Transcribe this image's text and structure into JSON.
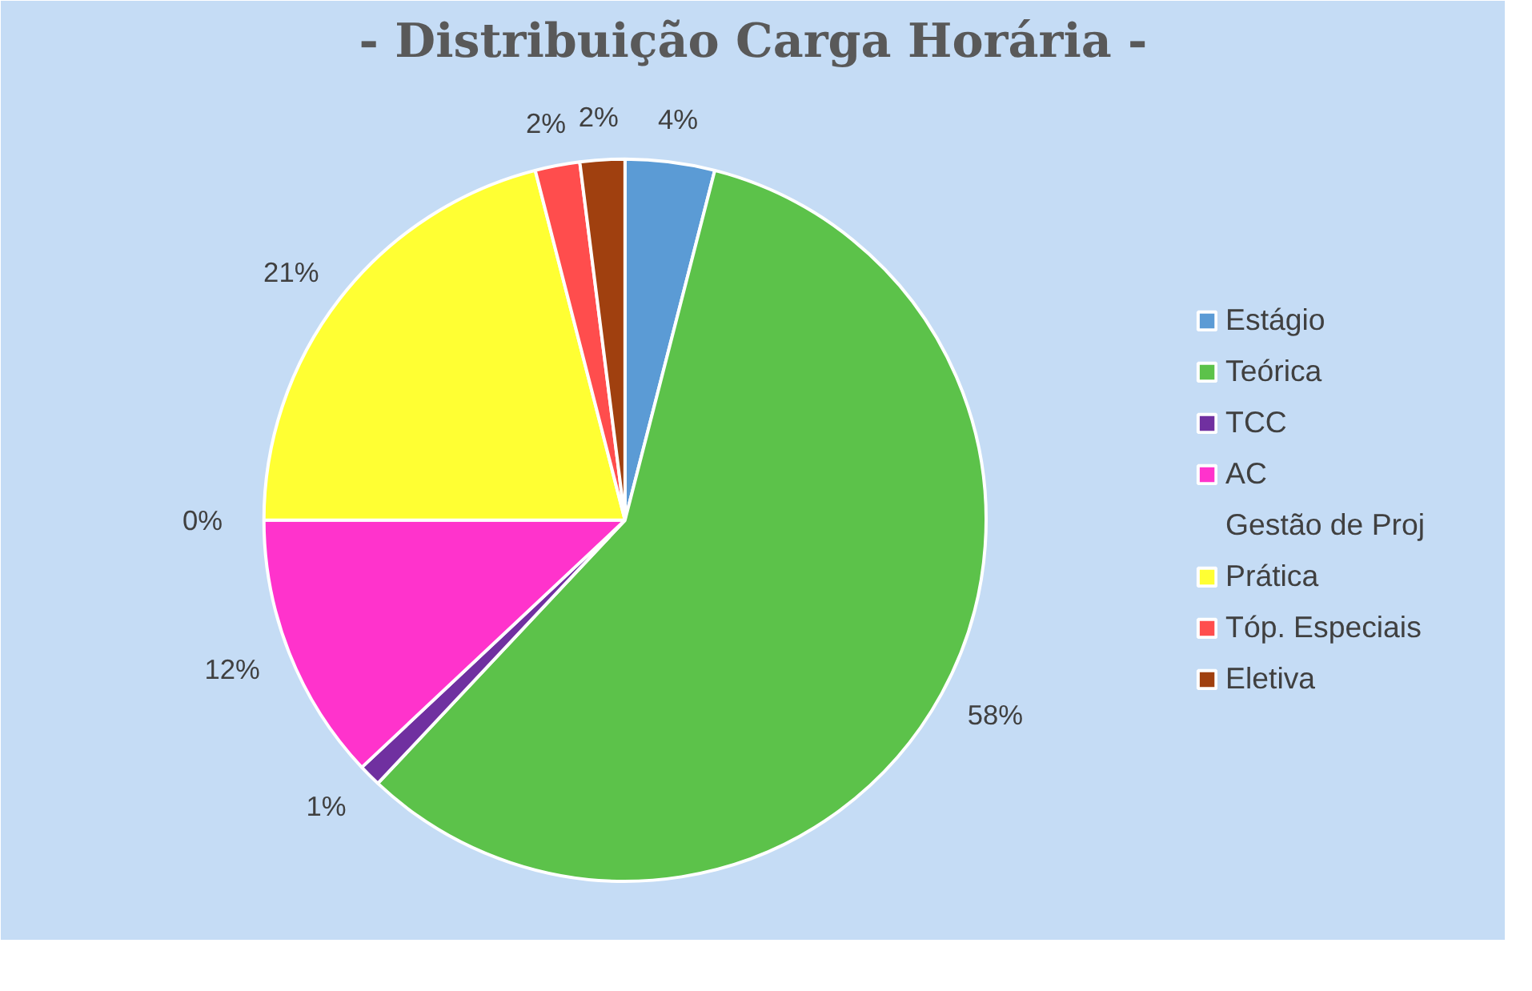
{
  "chart_data": {
    "type": "pie",
    "title": "- Distribuição Carga Horária -",
    "categories": [
      "Estágio",
      "Teórica",
      "TCC",
      "AC",
      "Gestão de Proj",
      "Prática",
      "Tóp. Especiais",
      "Eletiva"
    ],
    "values": [
      4,
      58,
      1,
      12,
      0,
      21,
      2,
      2
    ],
    "value_labels": [
      "4%",
      "58%",
      "1%",
      "12%",
      "0%",
      "21%",
      "2%",
      "2%"
    ],
    "colors": [
      "#5b9bd5",
      "#5cc24a",
      "#7030a0",
      "#ff33cc",
      "#808080",
      "#ffff33",
      "#ff4d4d",
      "#a0400f"
    ],
    "legend": "right"
  }
}
